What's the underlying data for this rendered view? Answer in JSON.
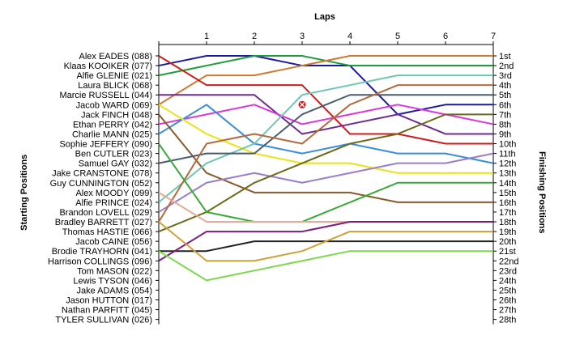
{
  "chart_data": {
    "type": "line",
    "title": "Laps",
    "ylabel_left": "Starting Positions",
    "ylabel_right": "Finishing Positions",
    "laps": [
      1,
      2,
      3,
      4,
      5,
      6,
      7
    ],
    "x_range": [
      0,
      7
    ],
    "y_range": [
      1,
      28
    ],
    "grid": false,
    "drivers": [
      "Alex EADES (088)",
      "Klaas KOOIKER (077)",
      "Alfie GLENIE (021)",
      "Laura BLICK (068)",
      "Marcie RUSSELL (044)",
      "Jacob WARD (069)",
      "Jack FINCH (048)",
      "Ethan PERRY (042)",
      "Charlie MANN (025)",
      "Sophie JEFFERY (090)",
      "Ben CUTLER (023)",
      "Samuel GAY (032)",
      "Jake CRANSTONE (078)",
      "Guy CUNNINGTON (052)",
      "Alex MOODY (099)",
      "Alfie PRINCE (024)",
      "Brandon LOVELL (029)",
      "Bradley BARRETT (027)",
      "Thomas HASTIE (066)",
      "Jacob CAINE (056)",
      "Brodie TRAYHORN (041)",
      "Harrison COLLINGS (096)",
      "Tom MASON (022)",
      "Lewis TYSON (046)",
      "Jake ADAMS (054)",
      "Jason HUTTON (017)",
      "Nathan PARFITT (045)",
      "TYLER SULLIVAN (026)"
    ],
    "finishing_positions": [
      "1st",
      "2nd",
      "3rd",
      "4th",
      "5th",
      "6th",
      "7th",
      "8th",
      "9th",
      "10th",
      "11th",
      "12th",
      "13th",
      "14th",
      "15th",
      "16th",
      "17th",
      "18th",
      "19th",
      "20th",
      "21st",
      "22nd",
      "23rd",
      "24th",
      "25th",
      "26th",
      "27th",
      "28th"
    ],
    "series": [
      {
        "color": "#1a1aa0",
        "values": [
          2,
          1,
          1,
          2,
          2,
          7,
          6,
          6
        ]
      },
      {
        "color": "#1f9c3a",
        "values": [
          3,
          2,
          1,
          1,
          2,
          2,
          2,
          2
        ]
      },
      {
        "color": "#d07a30",
        "values": [
          6,
          3,
          3,
          2,
          1,
          1,
          1,
          1
        ]
      },
      {
        "color": "#c81e1e",
        "values": [
          1,
          4,
          4,
          4,
          9,
          9,
          10,
          10
        ]
      },
      {
        "color": "#6f2b8f",
        "values": [
          5,
          5,
          5,
          9,
          8,
          7,
          9,
          9
        ]
      },
      {
        "color": "#d838d8",
        "values": [
          8,
          7,
          6,
          8,
          7,
          6,
          7,
          8
        ]
      },
      {
        "color": "#3c8ed8",
        "values": [
          9,
          6,
          10,
          11,
          10,
          11,
          11,
          12
        ]
      },
      {
        "color": "#e8e31c",
        "values": [
          6,
          9,
          11,
          12,
          12,
          13,
          13,
          13
        ]
      },
      {
        "color": "#8b5a2b",
        "values": [
          7,
          13,
          15,
          15,
          15,
          16,
          16,
          16
        ]
      },
      {
        "color": "#6ec6b4",
        "values": [
          16,
          12,
          10,
          5,
          4,
          3,
          3,
          3
        ]
      },
      {
        "color": "#495c6e",
        "values": [
          12,
          11,
          11,
          7,
          5,
          5,
          5,
          5
        ]
      },
      {
        "color": "#9a7ec8",
        "values": [
          17,
          14,
          13,
          14,
          13,
          12,
          12,
          11
        ]
      },
      {
        "color": "#b46a3c",
        "values": [
          18,
          10,
          9,
          10,
          6,
          4,
          4,
          4
        ]
      },
      {
        "color": "#6b6b1a",
        "values": [
          19,
          17,
          14,
          12,
          10,
          9,
          7,
          7
        ]
      },
      {
        "color": "#3aa83a",
        "values": [
          10,
          17,
          18,
          18,
          16,
          14,
          14,
          14
        ]
      },
      {
        "color": "#222222",
        "values": [
          21,
          21,
          20,
          20,
          20,
          20,
          20,
          20
        ]
      },
      {
        "color": "#e8a898",
        "values": [
          15,
          18,
          18,
          18,
          18,
          18,
          18,
          18
        ]
      },
      {
        "color": "#7a1e7a",
        "values": [
          22,
          19,
          19,
          19,
          18,
          18,
          18,
          18
        ]
      },
      {
        "color": "#d0a038",
        "values": [
          18,
          22,
          22,
          21,
          19,
          19,
          19,
          19
        ]
      },
      {
        "color": "#7cd84a",
        "values": [
          21,
          24,
          23,
          22,
          21,
          21,
          21,
          21
        ]
      }
    ],
    "retirement": {
      "lap": 3,
      "position": 6,
      "marker": "x",
      "color": "#d01818"
    }
  }
}
